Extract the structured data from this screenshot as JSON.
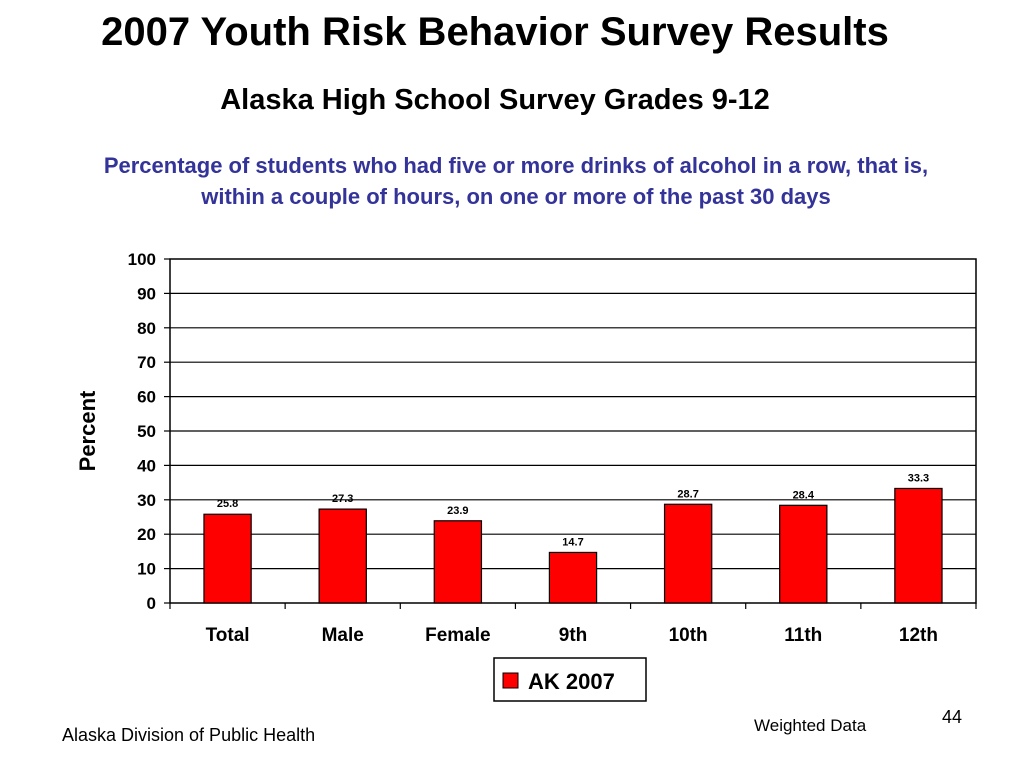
{
  "slide": {
    "title": "2007 Youth Risk Behavior Survey Results",
    "subtitle": "Alaska High School Survey Grades 9-12"
  },
  "chart_data": {
    "type": "bar",
    "title": "Percentage of students who had five or more drinks of alcohol in a row, that is, within a couple of hours, on one or more of the past 30 days",
    "xlabel": "",
    "ylabel": "Percent",
    "ylim": [
      0,
      100
    ],
    "yticks": [
      0,
      10,
      20,
      30,
      40,
      50,
      60,
      70,
      80,
      90,
      100
    ],
    "grid": true,
    "legend_position": "bottom",
    "categories": [
      "Total",
      "Male",
      "Female",
      "9th",
      "10th",
      "11th",
      "12th"
    ],
    "series": [
      {
        "name": "AK 2007",
        "values": [
          25.8,
          27.3,
          23.9,
          14.7,
          28.7,
          28.4,
          33.3
        ],
        "labels": [
          "25.8",
          "27.3",
          "23.9",
          "14.7",
          "28.7",
          "28.4",
          "33.3"
        ],
        "color": "#ff0000"
      }
    ]
  },
  "footer": {
    "organization": "Alaska Division of Public Health",
    "note": "Weighted Data",
    "page_number": "44"
  }
}
